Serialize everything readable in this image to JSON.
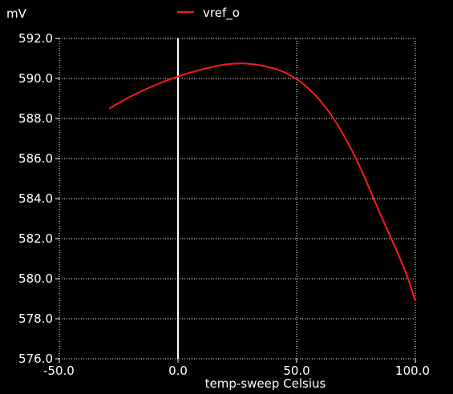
{
  "chart_data": {
    "type": "line",
    "title": "",
    "xlabel": "temp-sweep  Celsius",
    "ylabel": "mV",
    "xlim": [
      -50.0,
      100.0
    ],
    "ylim": [
      576.0,
      592.0
    ],
    "x_ticks": [
      "-50.0",
      "0.0",
      "50.0",
      "100.0"
    ],
    "y_ticks": [
      "576.0",
      "578.0",
      "580.0",
      "582.0",
      "584.0",
      "586.0",
      "588.0",
      "590.0",
      "592.0"
    ],
    "x_tick_values": [
      -50,
      0,
      50,
      100
    ],
    "y_tick_values": [
      576,
      578,
      580,
      582,
      584,
      586,
      588,
      590,
      592
    ],
    "grid": true,
    "grid_style": "dotted",
    "legend_position": "top-center",
    "marker_x": 0.0,
    "series": [
      {
        "name": "vref_o",
        "color": "#ff1a1a",
        "x": [
          -29,
          -20,
          -10,
          0,
          10,
          20,
          27,
          35,
          45,
          55,
          65,
          75,
          85,
          95,
          100
        ],
        "y": [
          588.5,
          589.1,
          589.65,
          590.1,
          590.45,
          590.7,
          590.75,
          590.65,
          590.3,
          589.5,
          588.1,
          586.0,
          583.3,
          580.6,
          578.9
        ]
      }
    ]
  }
}
